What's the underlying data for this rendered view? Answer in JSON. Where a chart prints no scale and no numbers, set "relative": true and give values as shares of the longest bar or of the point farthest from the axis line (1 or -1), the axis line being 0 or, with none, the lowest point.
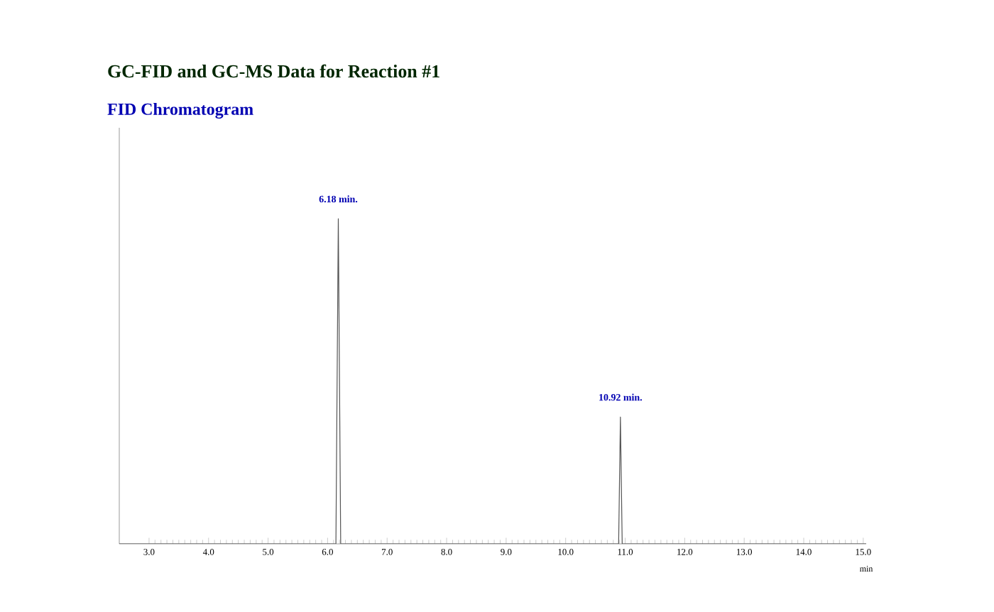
{
  "chart_data": {
    "type": "line",
    "title": "GC-FID and GC-MS Data for Reaction #1",
    "subtitle": "FID Chromatogram",
    "xlabel": "min",
    "relative": true,
    "x": [
      2.5,
      6.14,
      6.18,
      6.22,
      10.89,
      10.92,
      10.95,
      15.05
    ],
    "series": [
      {
        "color": "#555555",
        "values": [
          0,
          0,
          1,
          0,
          0,
          0.39,
          0,
          0
        ]
      }
    ],
    "xlim": [
      2.5,
      15.05
    ],
    "xticks": [
      {
        "value": 3,
        "label": "3.0"
      },
      {
        "value": 4,
        "label": "4.0"
      },
      {
        "value": 5,
        "label": "5.0"
      },
      {
        "value": 6,
        "label": "6.0"
      },
      {
        "value": 7,
        "label": "7.0"
      },
      {
        "value": 8,
        "label": "8.0"
      },
      {
        "value": 9,
        "label": "9.0"
      },
      {
        "value": 10,
        "label": "10.0"
      },
      {
        "value": 11,
        "label": "11.0"
      },
      {
        "value": 12,
        "label": "12.0"
      },
      {
        "value": 13,
        "label": "13.0"
      },
      {
        "value": 14,
        "label": "14.0"
      },
      {
        "value": 15,
        "label": "15.0"
      }
    ],
    "annotations": [
      {
        "text": "6.18 min.",
        "x": 6.18,
        "y": 1
      },
      {
        "text": "10.92 min.",
        "x": 10.92,
        "y": 0.39
      }
    ]
  }
}
